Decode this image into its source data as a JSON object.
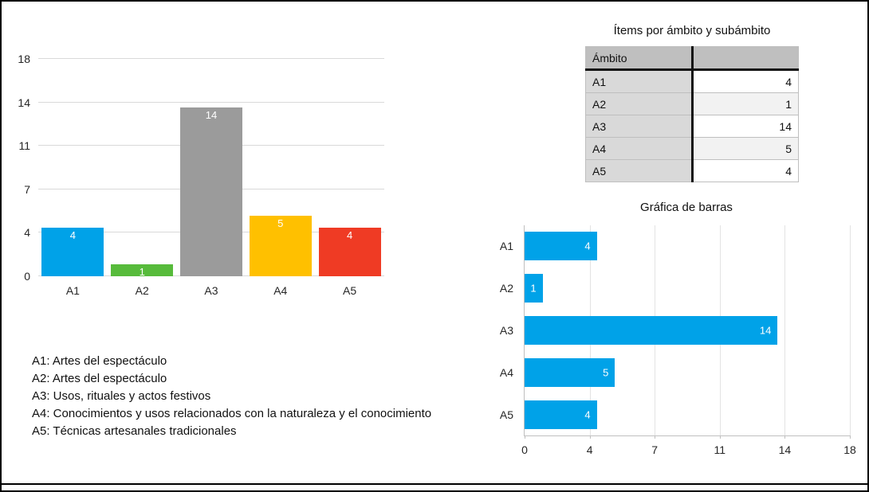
{
  "chart_data": [
    {
      "type": "bar",
      "title": "",
      "categories": [
        "A1",
        "A2",
        "A3",
        "A4",
        "A5"
      ],
      "values": [
        4,
        1,
        14,
        5,
        4
      ],
      "bar_colors": [
        "#00A2E8",
        "#57BB3B",
        "#9B9B9B",
        "#FFC000",
        "#EF3B24"
      ],
      "value_label_color": "#ffffff",
      "ytick_labels": [
        "0",
        "4",
        "7",
        "11",
        "14",
        "18"
      ],
      "ylim": [
        0,
        18
      ],
      "grid": "horizontal-light-gray"
    },
    {
      "type": "bar",
      "orientation": "horizontal",
      "title": "Gráfica de barras",
      "categories": [
        "A1",
        "A2",
        "A3",
        "A4",
        "A5"
      ],
      "values": [
        4,
        1,
        14,
        5,
        4
      ],
      "bar_color": "#00A2E8",
      "value_label_color": "#ffffff",
      "xtick_labels": [
        "0",
        "4",
        "7",
        "11",
        "14",
        "18"
      ],
      "xlim": [
        0,
        18
      ],
      "grid": "vertical-light-gray"
    },
    {
      "type": "table",
      "title": "Ítems por ámbito y subámbito",
      "columns": [
        "Ámbito",
        ""
      ],
      "rows": [
        [
          "A1",
          "4"
        ],
        [
          "A2",
          "1"
        ],
        [
          "A3",
          "14"
        ],
        [
          "A4",
          "5"
        ],
        [
          "A5",
          "4"
        ]
      ],
      "header_bg": "#bfbfbf",
      "category_cell_bg": "#d9d9d9"
    }
  ],
  "legend": {
    "lines": [
      "A1: Artes del espectáculo",
      "A2: Artes del espectáculo",
      "A3: Usos, rituales y actos festivos",
      "A4: Conocimientos y usos relacionados con la naturaleza y el conocimiento",
      "A5: Técnicas artesanales tradicionales"
    ]
  }
}
